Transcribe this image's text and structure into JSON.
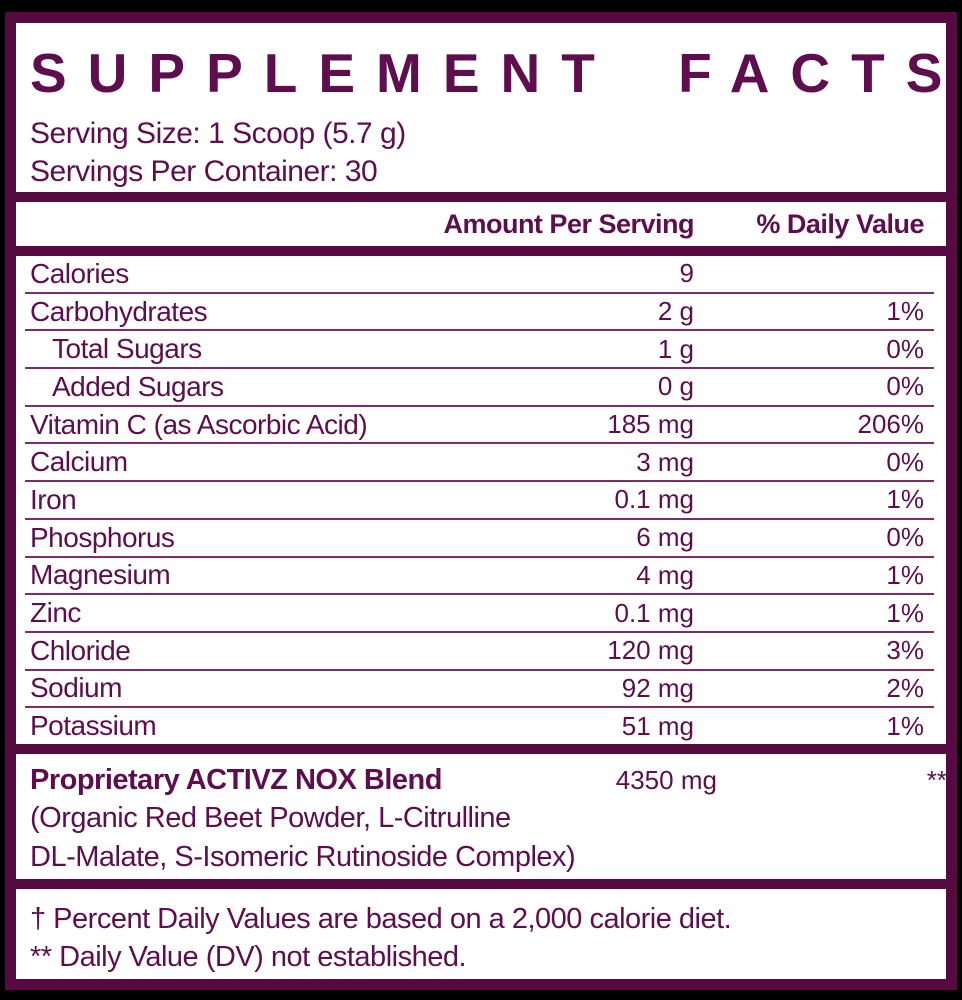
{
  "colors": {
    "background": "#000000",
    "panel": "#FFFFFF",
    "brand_border": "#570942",
    "text": "#5E0E4E",
    "row_divider": "#7E2C69"
  },
  "header": {
    "title": "SUPPLEMENT FACTS",
    "serving_size": "Serving Size: 1 Scoop (5.7 g)",
    "servings_per_container": "Servings Per Container: 30"
  },
  "columns": {
    "amount": "Amount Per Serving",
    "daily_value": "% Daily Value"
  },
  "rows": [
    {
      "label": "Calories",
      "amount": "9",
      "dv": ""
    },
    {
      "label": "Carbohydrates",
      "amount": "2 g",
      "dv": "1%"
    },
    {
      "label": "Total Sugars",
      "amount": "1 g",
      "dv": "0%"
    },
    {
      "label": "Added Sugars",
      "amount": "0 g",
      "dv": "0%"
    },
    {
      "label": "Vitamin C (as Ascorbic Acid)",
      "amount": "185 mg",
      "dv": "206%"
    },
    {
      "label": "Calcium",
      "amount": "3 mg",
      "dv": "0%"
    },
    {
      "label": "Iron",
      "amount": "0.1 mg",
      "dv": "1%"
    },
    {
      "label": "Phosphorus",
      "amount": "6 mg",
      "dv": "0%"
    },
    {
      "label": "Magnesium",
      "amount": "4 mg",
      "dv": "1%"
    },
    {
      "label": "Zinc",
      "amount": "0.1 mg",
      "dv": "1%"
    },
    {
      "label": "Chloride",
      "amount": "120 mg",
      "dv": "3%"
    },
    {
      "label": "Sodium",
      "amount": "92 mg",
      "dv": "2%"
    },
    {
      "label": "Potassium",
      "amount": "51 mg",
      "dv": "1%"
    }
  ],
  "blend": {
    "name": "Proprietary ACTIVZ NOX Blend",
    "amount": "4350 mg",
    "dv": "**",
    "details_line1": "(Organic Red Beet Powder, L-Citrulline",
    "details_line2": "DL-Malate, S-Isomeric Rutinoside Complex)"
  },
  "footnotes": {
    "daily_value_note": "† Percent Daily Values are based on a 2,000 calorie diet.",
    "not_established_note": "** Daily Value (DV) not established."
  }
}
